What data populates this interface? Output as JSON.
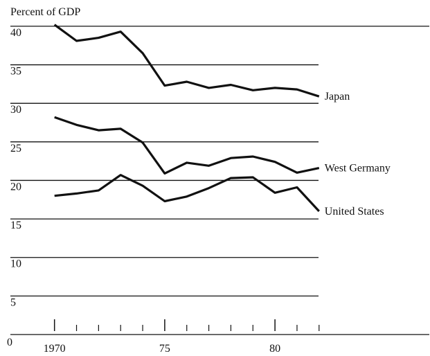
{
  "chart_data": {
    "type": "line",
    "y_axis_label": "Percent of GDP",
    "x": [
      1970,
      1971,
      1972,
      1973,
      1974,
      1975,
      1976,
      1977,
      1978,
      1979,
      1980,
      1981,
      1982
    ],
    "series": [
      {
        "name": "Japan",
        "color": "#111111",
        "values": [
          40.2,
          38.1,
          38.5,
          39.3,
          36.5,
          32.3,
          32.8,
          32.0,
          32.4,
          31.7,
          32.0,
          31.8,
          30.9
        ]
      },
      {
        "name": "West Germany",
        "color": "#111111",
        "values": [
          28.2,
          27.2,
          26.5,
          26.7,
          24.9,
          20.9,
          22.3,
          21.9,
          22.9,
          23.1,
          22.4,
          21.0,
          21.6
        ]
      },
      {
        "name": "United States",
        "color": "#111111",
        "values": [
          18.0,
          18.3,
          18.7,
          20.7,
          19.3,
          17.3,
          17.9,
          19.0,
          20.3,
          20.4,
          18.4,
          19.1,
          16.0
        ]
      }
    ],
    "xlim": [
      1968,
      1987
    ],
    "ylim": [
      0,
      40.8
    ],
    "xticks": [
      {
        "value": 1970,
        "label": "1970"
      },
      {
        "value": 1975,
        "label": "75"
      },
      {
        "value": 1980,
        "label": "80"
      }
    ],
    "minor_xticks": [
      1971,
      1972,
      1973,
      1974,
      1976,
      1977,
      1978,
      1979,
      1981,
      1982
    ],
    "yticks": [
      0,
      5,
      10,
      15,
      20,
      25,
      30,
      35,
      40
    ],
    "grid": true
  }
}
